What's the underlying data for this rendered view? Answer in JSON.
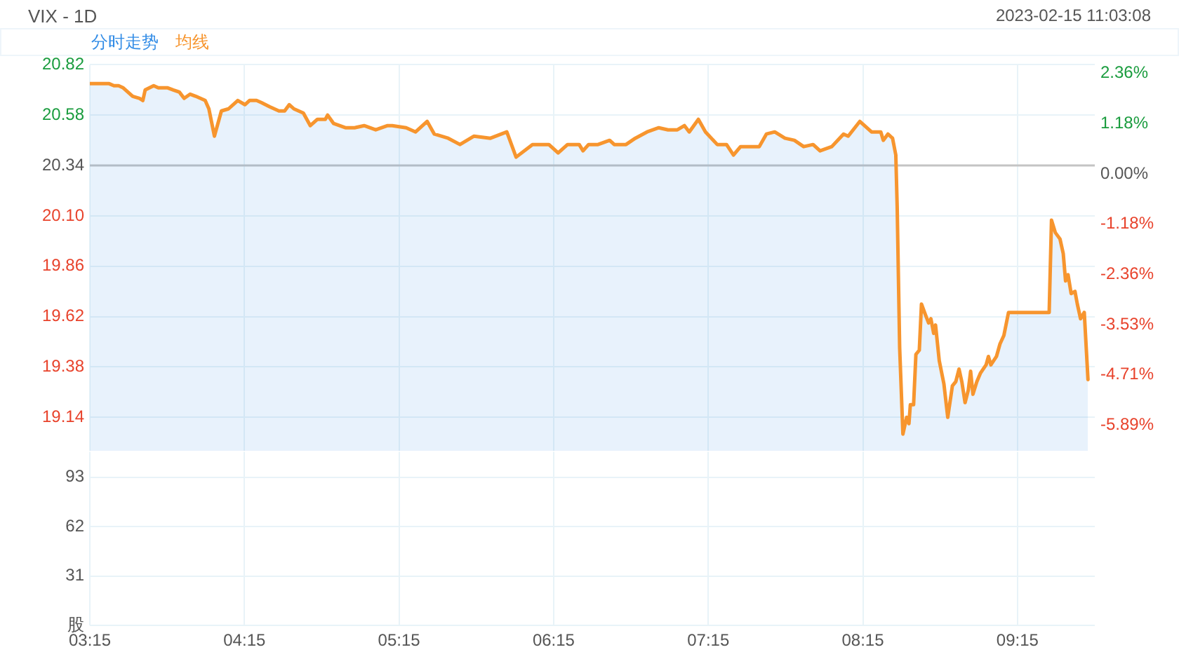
{
  "chart_data": [
    {
      "type": "line",
      "title": "VIX - 1D",
      "annotations": [
        "2023-02-15 11:03:08"
      ],
      "legend": "top left",
      "marker": "none",
      "grid": true,
      "tick_labels": "y",
      "x": [
        3.25,
        3.375,
        3.406,
        3.436,
        3.466,
        3.527,
        3.572,
        3.593,
        3.608,
        3.663,
        3.693,
        3.754,
        3.79,
        3.829,
        3.86,
        3.899,
        3.935,
        3.996,
        4.02,
        4.056,
        4.101,
        4.147,
        4.207,
        4.253,
        4.283,
        4.328,
        4.359,
        4.413,
        4.473,
        4.51,
        4.54,
        4.57,
        4.631,
        4.676,
        4.722,
        4.773,
        4.788,
        4.827,
        4.903,
        4.963,
        5.024,
        5.099,
        5.176,
        5.206,
        5.296,
        5.357,
        5.432,
        5.478,
        5.568,
        5.644,
        5.735,
        5.841,
        5.947,
        6.007,
        6.113,
        6.219,
        6.279,
        6.34,
        6.415,
        6.44,
        6.476,
        6.537,
        6.612,
        6.642,
        6.718,
        6.778,
        6.854,
        6.93,
        6.99,
        7.05,
        7.096,
        7.127,
        7.186,
        7.232,
        7.308,
        7.368,
        7.413,
        7.459,
        7.58,
        7.626,
        7.68,
        7.746,
        7.807,
        7.867,
        7.928,
        7.973,
        8.049,
        8.125,
        8.155,
        8.23,
        8.306,
        8.366,
        8.382,
        8.412,
        8.442,
        8.463,
        8.472,
        8.488,
        8.509,
        8.533,
        8.548,
        8.557,
        8.578,
        8.593,
        8.615,
        8.629,
        8.654,
        8.675,
        8.69,
        8.708,
        8.72,
        8.744,
        8.774,
        8.799,
        8.829,
        8.851,
        8.872,
        8.89,
        8.911,
        8.932,
        8.947,
        8.962,
        8.987,
        9.01,
        9.047,
        9.062,
        9.078,
        9.114,
        9.137,
        9.162,
        9.192,
        9.455,
        9.47,
        9.495,
        9.525,
        9.546,
        9.561,
        9.577,
        9.597,
        9.622,
        9.637,
        9.658,
        9.682,
        9.706
      ],
      "series": [
        {
          "name": "分时走势",
          "type": "area",
          "color": "#328ce6",
          "values": [
            20.73,
            20.73,
            20.72,
            20.72,
            20.71,
            20.67,
            20.66,
            20.65,
            20.7,
            20.72,
            20.71,
            20.71,
            20.7,
            20.69,
            20.66,
            20.68,
            20.67,
            20.65,
            20.61,
            20.48,
            20.6,
            20.61,
            20.65,
            20.63,
            20.65,
            20.65,
            20.64,
            20.62,
            20.6,
            20.6,
            20.63,
            20.61,
            20.59,
            20.53,
            20.56,
            20.56,
            20.58,
            20.54,
            20.52,
            20.52,
            20.53,
            20.51,
            20.53,
            20.53,
            20.52,
            20.5,
            20.55,
            20.49,
            20.47,
            20.44,
            20.48,
            20.47,
            20.5,
            20.38,
            20.44,
            20.44,
            20.4,
            20.44,
            20.44,
            20.41,
            20.44,
            20.44,
            20.46,
            20.44,
            20.44,
            20.47,
            20.5,
            20.52,
            20.51,
            20.51,
            20.53,
            20.5,
            20.56,
            20.5,
            20.44,
            20.44,
            20.39,
            20.43,
            20.43,
            20.49,
            20.5,
            20.47,
            20.46,
            20.43,
            20.44,
            20.41,
            20.43,
            20.49,
            20.48,
            20.55,
            20.5,
            20.5,
            20.46,
            20.49,
            20.47,
            20.39,
            20.14,
            19.47,
            19.06,
            19.14,
            19.11,
            19.2,
            19.2,
            19.44,
            19.46,
            19.68,
            19.63,
            19.59,
            19.61,
            19.54,
            19.58,
            19.41,
            19.3,
            19.14,
            19.29,
            19.31,
            19.37,
            19.31,
            19.21,
            19.27,
            19.36,
            19.25,
            19.31,
            19.35,
            19.39,
            19.43,
            19.39,
            19.43,
            19.49,
            19.53,
            19.64,
            19.64,
            20.08,
            20.02,
            19.99,
            19.92,
            19.79,
            19.82,
            19.73,
            19.74,
            19.68,
            19.61,
            19.64,
            19.32
          ]
        },
        {
          "name": "均线",
          "color": "#f7952e",
          "values": [
            20.73,
            20.73,
            20.72,
            20.72,
            20.71,
            20.67,
            20.66,
            20.65,
            20.7,
            20.72,
            20.71,
            20.71,
            20.7,
            20.69,
            20.66,
            20.68,
            20.67,
            20.65,
            20.61,
            20.48,
            20.6,
            20.61,
            20.65,
            20.63,
            20.65,
            20.65,
            20.64,
            20.62,
            20.6,
            20.6,
            20.63,
            20.61,
            20.59,
            20.53,
            20.56,
            20.56,
            20.58,
            20.54,
            20.52,
            20.52,
            20.53,
            20.51,
            20.53,
            20.53,
            20.52,
            20.5,
            20.55,
            20.49,
            20.47,
            20.44,
            20.48,
            20.47,
            20.5,
            20.38,
            20.44,
            20.44,
            20.4,
            20.44,
            20.44,
            20.41,
            20.44,
            20.44,
            20.46,
            20.44,
            20.44,
            20.47,
            20.5,
            20.52,
            20.51,
            20.51,
            20.53,
            20.5,
            20.56,
            20.5,
            20.44,
            20.44,
            20.39,
            20.43,
            20.43,
            20.49,
            20.5,
            20.47,
            20.46,
            20.43,
            20.44,
            20.41,
            20.43,
            20.49,
            20.48,
            20.55,
            20.5,
            20.5,
            20.46,
            20.49,
            20.47,
            20.39,
            20.14,
            19.47,
            19.06,
            19.14,
            19.11,
            19.2,
            19.2,
            19.44,
            19.46,
            19.68,
            19.63,
            19.59,
            19.61,
            19.54,
            19.58,
            19.41,
            19.3,
            19.14,
            19.29,
            19.31,
            19.37,
            19.31,
            19.21,
            19.27,
            19.36,
            19.25,
            19.31,
            19.35,
            19.39,
            19.43,
            19.39,
            19.43,
            19.49,
            19.53,
            19.64,
            19.64,
            20.08,
            20.02,
            19.99,
            19.92,
            19.79,
            19.82,
            19.73,
            19.74,
            19.68,
            19.61,
            19.64,
            19.32
          ]
        }
      ],
      "xlim": [
        3.25,
        9.75
      ],
      "xticks": [
        {
          "value": 3.25,
          "label": null
        },
        {
          "value": 4.25,
          "label": null
        },
        {
          "value": 5.25,
          "label": null
        },
        {
          "value": 6.25,
          "label": null
        },
        {
          "value": 7.25,
          "label": null
        },
        {
          "value": 8.25,
          "label": null
        },
        {
          "value": 9.25,
          "label": null
        }
      ],
      "ylim": [
        18.98,
        20.82
      ],
      "yticks": [
        19.14,
        19.38,
        19.62,
        19.86,
        {
          "value": 20.1,
          "label": "20.10"
        },
        20.34,
        20.58,
        20.82
      ],
      "y2lim": [
        -6.69,
        2.36
      ],
      "y2ticks": [
        {
          "value": -5.89,
          "label": "-5.89%"
        },
        {
          "value": -4.71,
          "label": "-4.71%"
        },
        {
          "value": -3.53,
          "label": "-3.53%"
        },
        {
          "value": -2.36,
          "label": "-2.36%"
        },
        {
          "value": -1.18,
          "label": "-1.18%"
        },
        {
          "value": 0,
          "label": "0.00%"
        },
        {
          "value": 1.18,
          "label": "1.18%"
        },
        {
          "value": 2.36,
          "label": "2.36%"
        }
      ],
      "ref_lines": [
        {
          "axis": "y",
          "value": 20.34,
          "color": "#c4c4c4"
        }
      ]
    },
    {
      "type": "bar",
      "grid": true,
      "xlim": [
        3.25,
        9.75
      ],
      "xticks": [
        {
          "value": 3.25,
          "label": "03:15"
        },
        {
          "value": 4.25,
          "label": "04:15"
        },
        {
          "value": 5.25,
          "label": "05:15"
        },
        {
          "value": 6.25,
          "label": "06:15"
        },
        {
          "value": 7.25,
          "label": "07:15"
        },
        {
          "value": 8.25,
          "label": "08:15"
        },
        {
          "value": 9.25,
          "label": "09:15"
        }
      ],
      "ylim": [
        0,
        109
      ],
      "yticks": [
        {
          "value": 0,
          "label": "股"
        },
        31,
        62,
        93
      ]
    }
  ]
}
